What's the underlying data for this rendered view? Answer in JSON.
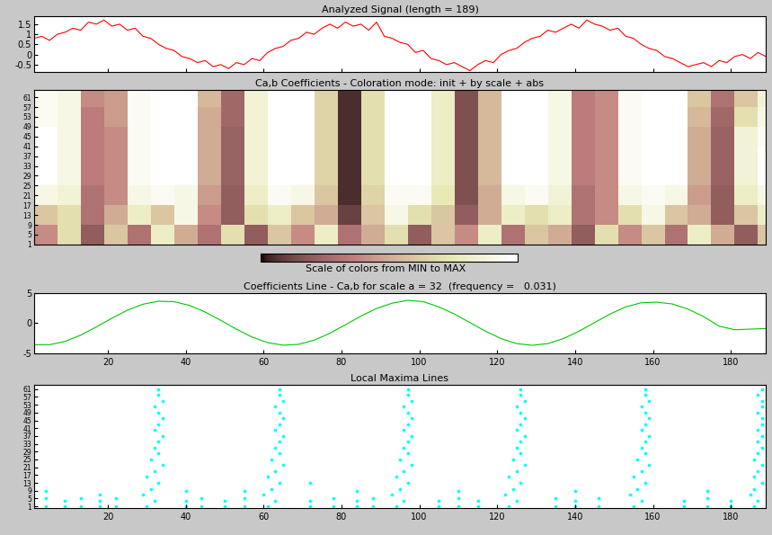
{
  "chart_data": [
    {
      "type": "line",
      "title": "Analyzed Signal (length = 189)",
      "color": "#ff0000",
      "tick_labels": "y",
      "x": [
        1,
        3,
        5,
        7,
        9,
        11,
        13,
        15,
        17,
        19,
        21,
        23,
        25,
        27,
        29,
        31,
        33,
        35,
        37,
        39,
        41,
        43,
        45,
        47,
        49,
        51,
        53,
        55,
        57,
        59,
        61,
        63,
        65,
        67,
        69,
        71,
        73,
        75,
        77,
        79,
        81,
        83,
        85,
        87,
        89,
        91,
        93,
        95,
        97,
        99,
        101,
        103,
        105,
        107,
        109,
        111,
        113,
        115,
        117,
        119,
        121,
        123,
        125,
        127,
        129,
        131,
        133,
        135,
        137,
        139,
        141,
        143,
        145,
        147,
        149,
        151,
        153,
        155,
        157,
        159,
        161,
        163,
        165,
        167,
        169,
        171,
        173,
        175,
        177,
        179,
        181,
        183,
        185,
        187,
        189
      ],
      "values": [
        0.8,
        0.9,
        0.7,
        1.0,
        1.1,
        1.3,
        1.2,
        1.6,
        1.5,
        1.7,
        1.4,
        1.5,
        1.2,
        1.3,
        0.9,
        0.8,
        0.5,
        0.3,
        0.2,
        -0.1,
        -0.2,
        -0.4,
        -0.3,
        -0.6,
        -0.5,
        -0.7,
        -0.4,
        -0.5,
        -0.2,
        -0.3,
        0.1,
        0.3,
        0.4,
        0.7,
        0.8,
        1.1,
        1.0,
        1.3,
        1.5,
        1.3,
        1.6,
        1.4,
        1.5,
        1.2,
        1.6,
        0.9,
        0.8,
        0.6,
        0.5,
        0.1,
        0.2,
        -0.2,
        -0.3,
        -0.5,
        -0.4,
        -0.6,
        -0.8,
        -0.5,
        -0.3,
        -0.4,
        0.0,
        0.2,
        0.3,
        0.6,
        0.8,
        0.9,
        1.2,
        1.1,
        1.3,
        1.5,
        1.3,
        1.7,
        1.5,
        1.4,
        1.2,
        1.3,
        0.9,
        0.8,
        0.5,
        0.3,
        0.2,
        -0.1,
        -0.2,
        -0.4,
        -0.6,
        -0.5,
        -0.4,
        -0.6,
        -0.3,
        -0.4,
        -0.1,
        0.0,
        -0.2,
        0.1,
        -0.1
      ],
      "xlim": [
        1,
        189
      ],
      "ylim": [
        -0.85,
        1.9
      ],
      "xticks": [
        20,
        40,
        60,
        80,
        100,
        120,
        140,
        160,
        180
      ],
      "yticks": [
        -0.5,
        0,
        0.5,
        1,
        1.5
      ]
    },
    {
      "type": "heatmap",
      "title": "Ca,b Coefficients - Coloration mode: init + by scale + abs",
      "tick_labels": "y",
      "colorbar_title": "Scale of colors from MIN to MAX",
      "color_range": [
        0,
        1
      ],
      "x_edges": [
        1,
        7,
        13,
        19,
        25,
        31,
        37,
        43,
        49,
        55,
        61,
        67,
        73,
        79,
        85,
        91,
        97,
        103,
        109,
        115,
        121,
        127,
        133,
        139,
        145,
        151,
        157,
        163,
        169,
        175,
        181,
        187,
        193
      ],
      "y_edges": [
        1,
        9,
        17,
        25,
        33,
        41,
        49,
        57,
        64
      ],
      "cells": [
        [
          0.4,
          0.7,
          0.2,
          0.6,
          0.3,
          0.8,
          0.5,
          0.3,
          0.7,
          0.2,
          0.6,
          0.4,
          0.8,
          0.3,
          0.5,
          0.7,
          0.2,
          0.6,
          0.4,
          0.8,
          0.3,
          0.6,
          0.5,
          0.2,
          0.7,
          0.4,
          0.6,
          0.3,
          0.8,
          0.5,
          0.2,
          0.6
        ],
        [
          0.6,
          0.7,
          0.3,
          0.5,
          0.8,
          0.6,
          0.9,
          0.4,
          0.2,
          0.7,
          0.8,
          0.6,
          0.5,
          0.1,
          0.6,
          0.9,
          0.7,
          0.6,
          0.2,
          0.5,
          0.8,
          0.7,
          0.8,
          0.3,
          0.4,
          0.7,
          0.9,
          0.6,
          0.5,
          0.2,
          0.6,
          0.8
        ],
        [
          0.9,
          0.85,
          0.3,
          0.4,
          0.9,
          0.95,
          0.9,
          0.45,
          0.2,
          0.8,
          0.95,
          0.9,
          0.6,
          0.05,
          0.65,
          0.95,
          0.95,
          0.75,
          0.15,
          0.5,
          0.9,
          0.95,
          0.85,
          0.3,
          0.4,
          0.9,
          0.95,
          0.9,
          0.45,
          0.2,
          0.8,
          0.9
        ],
        [
          1.0,
          0.9,
          0.35,
          0.4,
          0.95,
          1.0,
          1.0,
          0.5,
          0.22,
          0.85,
          1.0,
          1.0,
          0.65,
          0.05,
          0.7,
          1.0,
          1.0,
          0.8,
          0.15,
          0.55,
          1.0,
          1.0,
          0.9,
          0.35,
          0.4,
          0.95,
          1.0,
          1.0,
          0.5,
          0.22,
          0.85,
          1.0
        ],
        [
          1.0,
          0.9,
          0.35,
          0.4,
          0.95,
          1.0,
          1.0,
          0.5,
          0.22,
          0.85,
          1.0,
          1.0,
          0.65,
          0.05,
          0.7,
          1.0,
          1.0,
          0.8,
          0.15,
          0.55,
          1.0,
          1.0,
          0.9,
          0.35,
          0.4,
          0.95,
          1.0,
          1.0,
          0.5,
          0.22,
          0.85,
          1.0
        ],
        [
          1.0,
          0.9,
          0.35,
          0.4,
          0.95,
          1.0,
          1.0,
          0.5,
          0.22,
          0.85,
          1.0,
          1.0,
          0.65,
          0.05,
          0.7,
          1.0,
          1.0,
          0.8,
          0.15,
          0.55,
          1.0,
          1.0,
          0.9,
          0.35,
          0.4,
          0.95,
          1.0,
          1.0,
          0.5,
          0.22,
          0.85,
          0.95
        ],
        [
          0.95,
          0.9,
          0.35,
          0.45,
          0.95,
          1.0,
          1.0,
          0.5,
          0.25,
          0.85,
          1.0,
          1.0,
          0.65,
          0.05,
          0.7,
          1.0,
          1.0,
          0.8,
          0.15,
          0.55,
          1.0,
          1.0,
          0.9,
          0.35,
          0.4,
          0.95,
          1.0,
          1.0,
          0.55,
          0.25,
          0.7,
          0.9
        ],
        [
          0.95,
          0.9,
          0.4,
          0.45,
          0.95,
          1.0,
          1.0,
          0.55,
          0.25,
          0.85,
          1.0,
          1.0,
          0.65,
          0.05,
          0.7,
          1.0,
          1.0,
          0.8,
          0.15,
          0.55,
          1.0,
          1.0,
          0.9,
          0.35,
          0.4,
          0.95,
          1.0,
          1.0,
          0.6,
          0.3,
          0.6,
          0.85
        ]
      ],
      "xlim": [
        1,
        189
      ],
      "ylim": [
        1,
        64
      ],
      "yticks": [
        1,
        5,
        9,
        13,
        17,
        21,
        25,
        29,
        33,
        37,
        41,
        45,
        49,
        53,
        57,
        61
      ]
    },
    {
      "type": "line",
      "title": "Coefficients Line - Ca,b for scale a = 32  (frequency =   0.031)",
      "color": "#00c800",
      "x": [
        1,
        5,
        9,
        13,
        17,
        21,
        25,
        29,
        33,
        37,
        41,
        45,
        49,
        53,
        57,
        61,
        65,
        69,
        73,
        77,
        81,
        85,
        89,
        93,
        97,
        101,
        105,
        109,
        113,
        117,
        121,
        125,
        129,
        133,
        137,
        141,
        145,
        149,
        153,
        157,
        161,
        165,
        169,
        173,
        177,
        181,
        185,
        189
      ],
      "values": [
        -3.6,
        -3.6,
        -3.05,
        -2.0,
        -0.64,
        0.82,
        2.16,
        3.16,
        3.66,
        3.58,
        2.95,
        1.85,
        0.46,
        -1.0,
        -2.31,
        -3.25,
        -3.68,
        -3.54,
        -2.83,
        -1.69,
        -0.28,
        1.18,
        2.45,
        3.33,
        3.8,
        3.6,
        2.71,
        1.52,
        0.09,
        -1.35,
        -2.58,
        -3.41,
        -3.7,
        -3.41,
        -2.58,
        -1.35,
        0.09,
        1.52,
        2.71,
        3.4,
        3.5,
        3.2,
        2.35,
        1.1,
        -0.5,
        -1.1,
        -1.0,
        -0.9
      ],
      "xlim": [
        1,
        189
      ],
      "ylim": [
        -5,
        5
      ],
      "xticks": [
        20,
        40,
        60,
        80,
        100,
        120,
        140,
        160,
        180
      ],
      "yticks": [
        -5,
        0,
        5
      ]
    },
    {
      "type": "scatter",
      "title": "Local Maxima Lines",
      "color": "#00ffff",
      "marker": "o",
      "x": [
        30,
        32,
        29,
        31,
        33,
        30,
        32,
        34,
        31,
        33,
        32,
        33,
        34,
        32,
        33,
        34,
        33,
        32,
        34,
        33,
        33,
        61,
        63,
        60,
        62,
        64,
        61,
        63,
        65,
        62,
        64,
        63,
        64,
        65,
        63,
        64,
        65,
        64,
        63,
        65,
        64,
        64,
        94,
        96,
        93,
        95,
        97,
        94,
        96,
        98,
        95,
        97,
        96,
        97,
        98,
        96,
        97,
        98,
        97,
        96,
        98,
        97,
        97,
        123,
        125,
        122,
        124,
        126,
        123,
        125,
        127,
        124,
        126,
        125,
        126,
        127,
        125,
        126,
        127,
        126,
        125,
        127,
        126,
        126,
        155,
        157,
        154,
        156,
        158,
        155,
        157,
        159,
        156,
        158,
        157,
        158,
        159,
        157,
        158,
        159,
        158,
        157,
        159,
        158,
        158,
        186,
        187,
        185,
        186,
        188,
        186,
        187,
        188,
        186,
        187,
        188,
        187,
        188,
        187,
        188,
        188,
        187,
        188,
        188,
        187,
        188,
        4,
        4,
        4,
        9,
        9,
        13,
        13,
        18,
        18,
        18,
        22,
        22,
        40,
        40,
        40,
        44,
        44,
        50,
        50,
        55,
        55,
        55,
        72,
        72,
        72,
        78,
        78,
        84,
        84,
        84,
        88,
        88,
        105,
        105,
        110,
        110,
        110,
        115,
        115,
        135,
        135,
        140,
        140,
        140,
        146,
        146,
        168,
        168,
        174,
        174,
        174,
        180,
        180
      ],
      "y": [
        1,
        4,
        7,
        10,
        13,
        16,
        19,
        22,
        25,
        28,
        31,
        34,
        37,
        40,
        43,
        46,
        49,
        52,
        55,
        58,
        61,
        1,
        4,
        7,
        10,
        13,
        16,
        19,
        22,
        25,
        28,
        31,
        34,
        37,
        40,
        43,
        46,
        49,
        52,
        55,
        58,
        61,
        1,
        4,
        7,
        10,
        13,
        16,
        19,
        22,
        25,
        28,
        31,
        34,
        37,
        40,
        43,
        46,
        49,
        52,
        55,
        58,
        61,
        1,
        4,
        7,
        10,
        13,
        16,
        19,
        22,
        25,
        28,
        31,
        34,
        37,
        40,
        43,
        46,
        49,
        52,
        55,
        58,
        61,
        1,
        4,
        7,
        10,
        13,
        16,
        19,
        22,
        25,
        28,
        31,
        34,
        37,
        40,
        43,
        46,
        49,
        52,
        55,
        58,
        61,
        1,
        4,
        7,
        10,
        13,
        16,
        19,
        22,
        25,
        28,
        31,
        34,
        37,
        40,
        43,
        46,
        49,
        52,
        55,
        58,
        61,
        1,
        5,
        9,
        1,
        4,
        1,
        5,
        1,
        4,
        7,
        1,
        5,
        1,
        4,
        9,
        1,
        5,
        1,
        4,
        1,
        5,
        9,
        1,
        4,
        13,
        1,
        5,
        1,
        4,
        9,
        1,
        5,
        1,
        4,
        1,
        5,
        9,
        1,
        4,
        1,
        5,
        1,
        4,
        9,
        1,
        5,
        1,
        4,
        1,
        5,
        9,
        1,
        4
      ],
      "xlim": [
        1,
        189
      ],
      "ylim": [
        0,
        63
      ],
      "xticks": [
        20,
        40,
        60,
        80,
        100,
        120,
        140,
        160,
        180
      ],
      "yticks": [
        1,
        5,
        9,
        13,
        17,
        21,
        25,
        29,
        33,
        37,
        41,
        45,
        49,
        53,
        57,
        61
      ]
    }
  ]
}
